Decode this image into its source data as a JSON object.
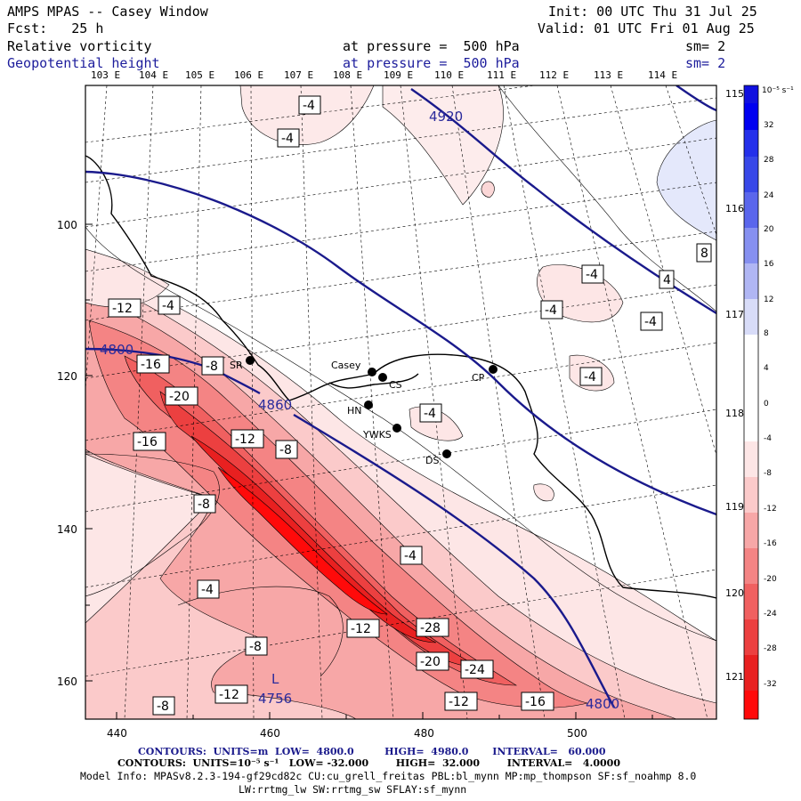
{
  "header": {
    "title": "AMPS MPAS -- Casey Window",
    "init": "Init: 00 UTC Thu 31 Jul 25",
    "forecast": "Fcst:   25 h",
    "valid": "Valid: 01 UTC Fri 01 Aug 25",
    "field1_name": "Relative vorticity",
    "field1_level": "at pressure =  500 hPa",
    "field1_sm": "sm= 2",
    "field2_name": "Geopotential height",
    "field2_level": "at pressure =  500 hPa",
    "field2_sm": "sm= 2"
  },
  "top_lon_labels": [
    "103 E",
    "104 E",
    "105 E",
    "106 E",
    "107 E",
    "108 E",
    "109 E",
    "110 E",
    "111 E",
    "112 E",
    "113 E",
    "114 E"
  ],
  "right_lon_labels": [
    "115 E",
    "116 E",
    "117 E",
    "118 E",
    "119 E",
    "120 E",
    "121 E"
  ],
  "x_ticks": [
    "440",
    "460",
    "480",
    "500"
  ],
  "y_ticks": [
    "100",
    "120",
    "140",
    "160"
  ],
  "stations": [
    "Casey",
    "CS",
    "CP",
    "SR",
    "HN",
    "YWKS",
    "DS"
  ],
  "height_contour_labels": [
    "4920",
    "4800",
    "4860",
    "4800",
    "L",
    "4756"
  ],
  "vorticity_labels": [
    "-4",
    "-4",
    "-12",
    "-4",
    "-16",
    "-8",
    "-20",
    "-16",
    "-12",
    "-8",
    "-8",
    "-4",
    "-12",
    "-28",
    "-20",
    "-24",
    "-12",
    "-16",
    "-8",
    "-12",
    "-8",
    "-4",
    "-4",
    "-4",
    "-4",
    "-4",
    "-4",
    "4",
    "8"
  ],
  "colorbar": {
    "unit": "10⁻⁵ s⁻¹",
    "labels": [
      "32",
      "28",
      "24",
      "20",
      "16",
      "12",
      "8",
      "4",
      "0",
      "-4",
      "-8",
      "-12",
      "-16",
      "-20",
      "-24",
      "-28",
      "-32"
    ]
  },
  "footer": {
    "line1": "CONTOURS:  UNITS=m  LOW=  4800.0         HIGH=  4980.0       INTERVAL=   60.000",
    "line2": "CONTOURS:  UNITS=10⁻⁵ s⁻¹   LOW= -32.000        HIGH=  32.000        INTERVAL=   4.0000",
    "line3": "Model Info: MPASv8.2.3-194-gf29cd82c CU:cu_grell_freitas PBL:bl_mynn MP:mp_thompson SF:sf_noahmp 8.0",
    "line4": "LW:rrtmg_lw SW:rrtmg_sw SFLAY:sf_mynn"
  },
  "colors": {
    "height_contour": "#1a1a8c",
    "vort_strong": "#ff0000",
    "vort_weak": "#fde6e6",
    "vort_positive": "#e3e6fb"
  }
}
